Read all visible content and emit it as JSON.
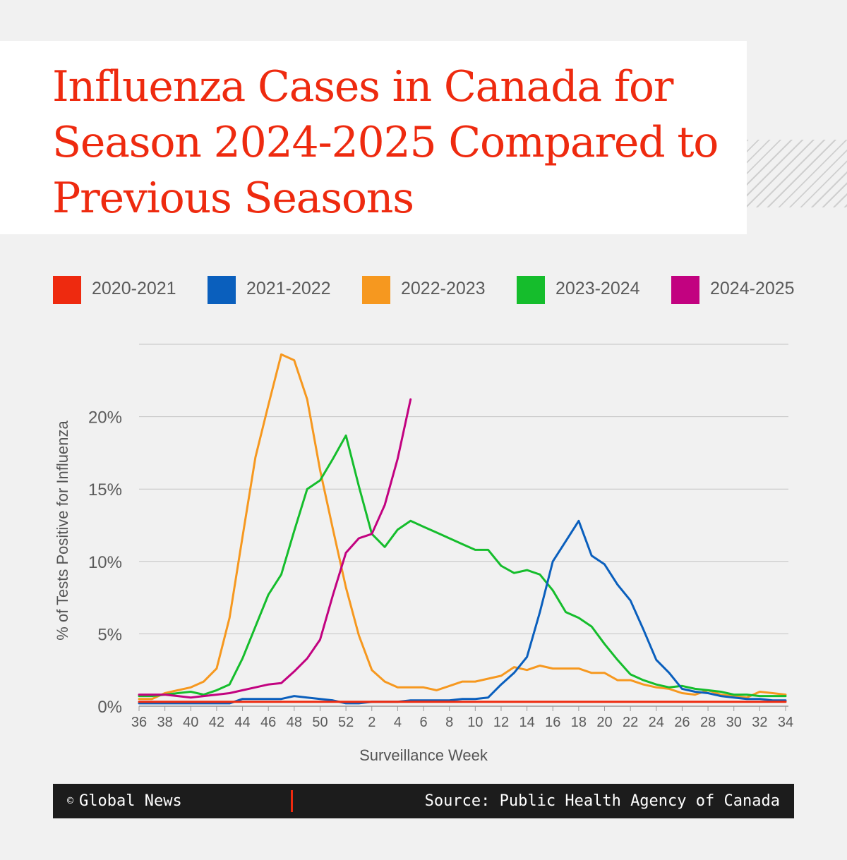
{
  "title": "Influenza Cases in Canada for Season 2024-2025 Compared to Previous Seasons",
  "footer": {
    "copyright_icon": "©",
    "credit": "Global News",
    "source": "Source: Public Health Agency of Canada"
  },
  "colors": {
    "accent": "#ee2a0f",
    "2020-2021": "#ee2a0f",
    "2021-2022": "#0a5fbd",
    "2022-2023": "#f6981f",
    "2023-2024": "#15bd2c",
    "2024-2025": "#c20280"
  },
  "legend": [
    {
      "label": "2020-2021",
      "color": "#ee2a0f"
    },
    {
      "label": "2021-2022",
      "color": "#0a5fbd"
    },
    {
      "label": "2022-2023",
      "color": "#f6981f"
    },
    {
      "label": "2023-2024",
      "color": "#15bd2c"
    },
    {
      "label": "2024-2025",
      "color": "#c20280"
    }
  ],
  "chart_data": {
    "type": "line",
    "xlabel": "Surveillance Week",
    "ylabel": "% of Tests Positive for Influenza",
    "ylim": [
      0,
      25
    ],
    "yticks": [
      0,
      5,
      10,
      15,
      20
    ],
    "ytick_labels": [
      "0%",
      "5%",
      "10%",
      "15%",
      "20%"
    ],
    "grid": true,
    "legend_position": "top",
    "x_categories": [
      36,
      37,
      38,
      39,
      40,
      41,
      42,
      43,
      44,
      45,
      46,
      47,
      48,
      49,
      50,
      51,
      52,
      1,
      2,
      3,
      4,
      5,
      6,
      7,
      8,
      9,
      10,
      11,
      12,
      13,
      14,
      15,
      16,
      17,
      18,
      19,
      20,
      21,
      22,
      23,
      24,
      25,
      26,
      27,
      28,
      29,
      30,
      31,
      32,
      33,
      34
    ],
    "xtick_labels": [
      "36",
      "38",
      "40",
      "42",
      "44",
      "46",
      "48",
      "50",
      "52",
      "2",
      "4",
      "6",
      "8",
      "10",
      "12",
      "14",
      "16",
      "18",
      "20",
      "22",
      "24",
      "26",
      "28",
      "30",
      "32",
      "34"
    ],
    "series": [
      {
        "name": "2020-2021",
        "color": "#ee2a0f",
        "values": [
          0.3,
          0.3,
          0.3,
          0.3,
          0.3,
          0.3,
          0.3,
          0.3,
          0.3,
          0.3,
          0.3,
          0.3,
          0.3,
          0.3,
          0.3,
          0.3,
          0.3,
          0.3,
          0.3,
          0.3,
          0.3,
          0.3,
          0.3,
          0.3,
          0.3,
          0.3,
          0.3,
          0.3,
          0.3,
          0.3,
          0.3,
          0.3,
          0.3,
          0.3,
          0.3,
          0.3,
          0.3,
          0.3,
          0.3,
          0.3,
          0.3,
          0.3,
          0.3,
          0.3,
          0.3,
          0.3,
          0.3,
          0.3,
          0.3,
          0.3,
          0.3
        ]
      },
      {
        "name": "2021-2022",
        "color": "#0a5fbd",
        "values": [
          0.2,
          0.2,
          0.2,
          0.2,
          0.2,
          0.2,
          0.2,
          0.2,
          0.5,
          0.5,
          0.5,
          0.5,
          0.7,
          0.6,
          0.5,
          0.4,
          0.2,
          0.2,
          0.3,
          0.3,
          0.3,
          0.4,
          0.4,
          0.4,
          0.4,
          0.5,
          0.5,
          0.6,
          1.5,
          2.3,
          3.4,
          6.5,
          10.0,
          11.4,
          12.8,
          10.4,
          9.8,
          8.4,
          7.3,
          5.3,
          3.2,
          2.3,
          1.2,
          1.0,
          0.9,
          0.7,
          0.6,
          0.5,
          0.5,
          0.4,
          0.4
        ]
      },
      {
        "name": "2022-2023",
        "color": "#f6981f",
        "values": [
          0.5,
          0.5,
          0.9,
          1.1,
          1.3,
          1.7,
          2.6,
          6.1,
          11.7,
          17.2,
          20.8,
          24.3,
          23.9,
          21.2,
          16.3,
          12.2,
          8.2,
          4.9,
          2.5,
          1.7,
          1.3,
          1.3,
          1.3,
          1.1,
          1.4,
          1.7,
          1.7,
          1.9,
          2.1,
          2.7,
          2.5,
          2.8,
          2.6,
          2.6,
          2.6,
          2.3,
          2.3,
          1.8,
          1.8,
          1.5,
          1.3,
          1.2,
          0.9,
          0.8,
          1.1,
          0.8,
          0.7,
          0.6,
          1.0,
          0.9,
          0.8
        ]
      },
      {
        "name": "2023-2024",
        "color": "#15bd2c",
        "values": [
          0.7,
          0.7,
          0.8,
          0.9,
          1.0,
          0.8,
          1.1,
          1.5,
          3.3,
          5.5,
          7.7,
          9.1,
          12.1,
          15.0,
          15.6,
          17.1,
          18.7,
          15.2,
          11.9,
          11.0,
          12.2,
          12.8,
          12.4,
          12.0,
          11.6,
          11.2,
          10.8,
          10.8,
          9.7,
          9.2,
          9.4,
          9.1,
          8.0,
          6.5,
          6.1,
          5.5,
          4.3,
          3.2,
          2.2,
          1.8,
          1.5,
          1.3,
          1.4,
          1.2,
          1.1,
          1.0,
          0.8,
          0.8,
          0.7,
          0.7,
          0.7
        ]
      },
      {
        "name": "2024-2025",
        "color": "#c20280",
        "values": [
          0.8,
          0.8,
          0.8,
          0.7,
          0.6,
          0.7,
          0.8,
          0.9,
          1.1,
          1.3,
          1.5,
          1.6,
          2.4,
          3.3,
          4.6,
          7.7,
          10.6,
          11.6,
          11.9,
          13.9,
          17.1,
          21.2
        ]
      }
    ]
  }
}
